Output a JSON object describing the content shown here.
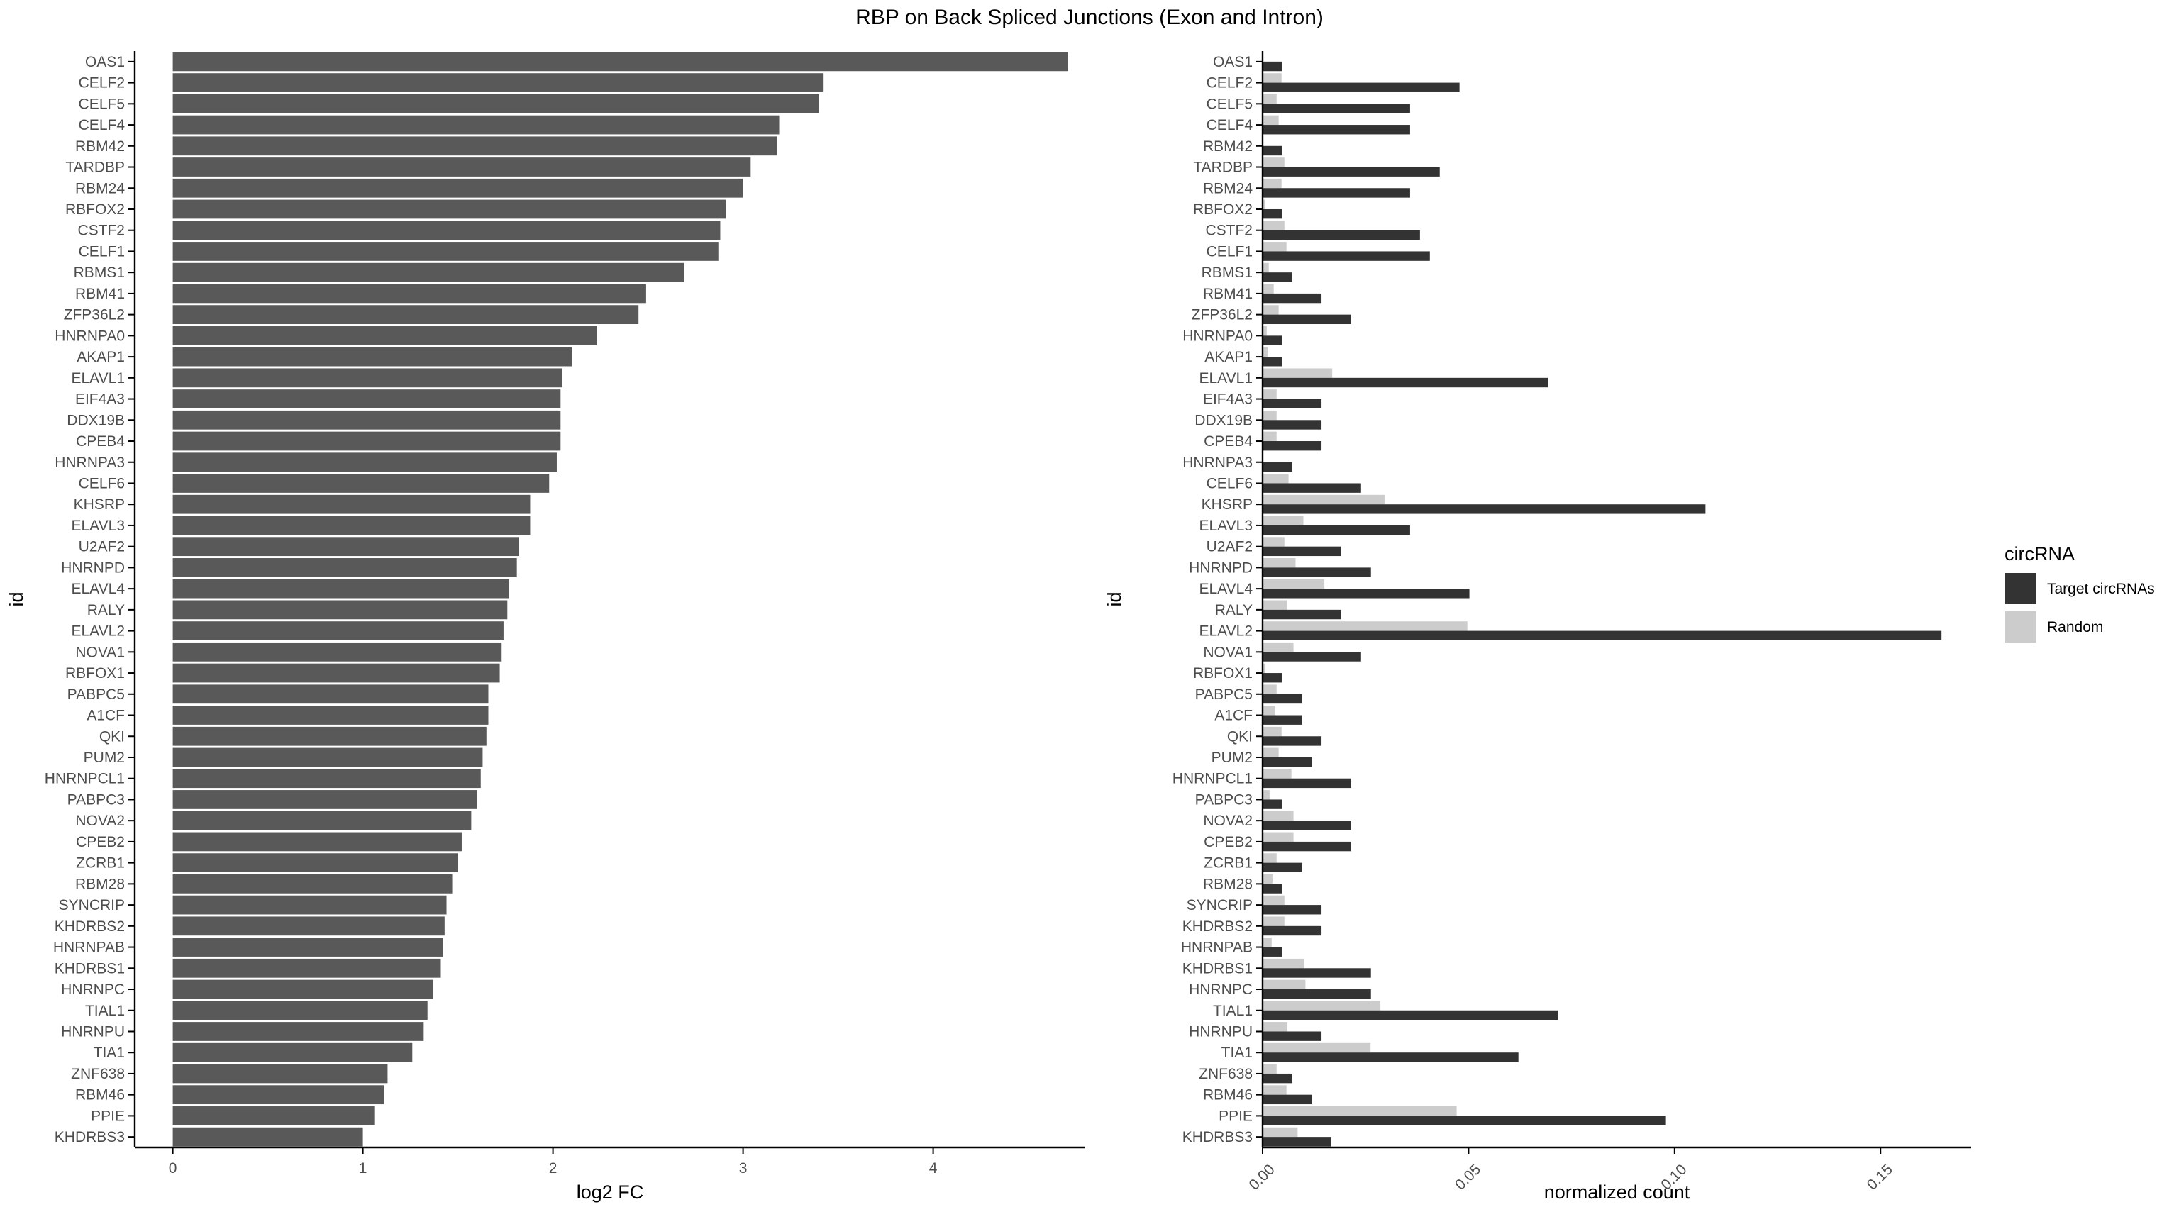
{
  "title": "RBP on Back Spliced Junctions (Exon and Intron)",
  "colors": {
    "fc_bar": "#595959",
    "target": "#333333",
    "random": "#cccccc",
    "axis": "#000000",
    "tick_text": "#4d4d4d"
  },
  "chart_data": [
    {
      "type": "bar",
      "orientation": "horizontal",
      "xlabel": "log2 FC",
      "ylabel": "id",
      "xlim": [
        -0.2,
        4.8
      ],
      "xticks": [
        0,
        1,
        2,
        3,
        4
      ],
      "grid": false,
      "categories": [
        "OAS1",
        "CELF2",
        "CELF5",
        "CELF4",
        "RBM42",
        "TARDBP",
        "RBM24",
        "RBFOX2",
        "CSTF2",
        "CELF1",
        "RBMS1",
        "RBM41",
        "ZFP36L2",
        "HNRNPA0",
        "AKAP1",
        "ELAVL1",
        "EIF4A3",
        "DDX19B",
        "CPEB4",
        "HNRNPA3",
        "CELF6",
        "KHSRP",
        "ELAVL3",
        "U2AF2",
        "HNRNPD",
        "ELAVL4",
        "RALY",
        "ELAVL2",
        "NOVA1",
        "RBFOX1",
        "PABPC5",
        "A1CF",
        "QKI",
        "PUM2",
        "HNRNPCL1",
        "PABPC3",
        "NOVA2",
        "CPEB2",
        "ZCRB1",
        "RBM28",
        "SYNCRIP",
        "KHDRBS2",
        "HNRNPAB",
        "KHDRBS1",
        "HNRNPC",
        "TIAL1",
        "HNRNPU",
        "TIA1",
        "ZNF638",
        "RBM46",
        "PPIE",
        "KHDRBS3"
      ],
      "values": [
        4.71,
        3.42,
        3.4,
        3.19,
        3.18,
        3.04,
        3.0,
        2.91,
        2.88,
        2.87,
        2.69,
        2.49,
        2.45,
        2.23,
        2.1,
        2.05,
        2.04,
        2.04,
        2.04,
        2.02,
        1.98,
        1.88,
        1.88,
        1.82,
        1.81,
        1.77,
        1.76,
        1.74,
        1.73,
        1.72,
        1.66,
        1.66,
        1.65,
        1.63,
        1.62,
        1.6,
        1.57,
        1.52,
        1.5,
        1.47,
        1.44,
        1.43,
        1.42,
        1.41,
        1.37,
        1.34,
        1.32,
        1.26,
        1.13,
        1.11,
        1.06,
        1.0
      ]
    },
    {
      "type": "bar",
      "orientation": "horizontal",
      "xlabel": "normalized count",
      "ylabel": "id",
      "xlim": [
        0,
        0.172
      ],
      "xticks": [
        "0.00",
        "0.05",
        "0.10",
        "0.15"
      ],
      "grid": false,
      "legend": {
        "title": "circRNA",
        "placement": "right",
        "entries": [
          "Target circRNAs",
          "Random"
        ]
      },
      "categories": [
        "OAS1",
        "CELF2",
        "CELF5",
        "CELF4",
        "RBM42",
        "TARDBP",
        "RBM24",
        "RBFOX2",
        "CSTF2",
        "CELF1",
        "RBMS1",
        "RBM41",
        "ZFP36L2",
        "HNRNPA0",
        "AKAP1",
        "ELAVL1",
        "EIF4A3",
        "DDX19B",
        "CPEB4",
        "HNRNPA3",
        "CELF6",
        "KHSRP",
        "ELAVL3",
        "U2AF2",
        "HNRNPD",
        "ELAVL4",
        "RALY",
        "ELAVL2",
        "NOVA1",
        "RBFOX1",
        "PABPC5",
        "A1CF",
        "QKI",
        "PUM2",
        "HNRNPCL1",
        "PABPC3",
        "NOVA2",
        "CPEB2",
        "ZCRB1",
        "RBM28",
        "SYNCRIP",
        "KHDRBS2",
        "HNRNPAB",
        "KHDRBS1",
        "HNRNPC",
        "TIAL1",
        "HNRNPU",
        "TIA1",
        "ZNF638",
        "RBM46",
        "PPIE",
        "KHDRBS3"
      ],
      "series": [
        {
          "name": "Target circRNAs",
          "values": [
            0.0048,
            0.0478,
            0.0358,
            0.0358,
            0.0048,
            0.043,
            0.0358,
            0.0048,
            0.0382,
            0.0406,
            0.0072,
            0.0143,
            0.0215,
            0.0048,
            0.0048,
            0.0693,
            0.0143,
            0.0143,
            0.0143,
            0.0072,
            0.0239,
            0.1075,
            0.0358,
            0.0191,
            0.0263,
            0.0502,
            0.0191,
            0.1648,
            0.0239,
            0.0048,
            0.0096,
            0.0096,
            0.0143,
            0.0119,
            0.0215,
            0.0048,
            0.0215,
            0.0215,
            0.0096,
            0.0048,
            0.0143,
            0.0143,
            0.0048,
            0.0263,
            0.0263,
            0.0717,
            0.0143,
            0.0621,
            0.0072,
            0.0119,
            0.0979,
            0.0167
          ]
        },
        {
          "name": "Random",
          "values": [
            0,
            0.0046,
            0.0034,
            0.0039,
            0,
            0.0053,
            0.0046,
            0.0007,
            0.0053,
            0.0058,
            0.0015,
            0.0027,
            0.0039,
            0.001,
            0.0012,
            0.0169,
            0.0034,
            0.0034,
            0.0034,
            0,
            0.0063,
            0.0296,
            0.0099,
            0.0053,
            0.008,
            0.015,
            0.006,
            0.0497,
            0.0075,
            0.0007,
            0.0034,
            0.0031,
            0.0046,
            0.0039,
            0.007,
            0.0017,
            0.0075,
            0.0075,
            0.0034,
            0.0024,
            0.0053,
            0.0053,
            0.0022,
            0.0101,
            0.0104,
            0.0286,
            0.006,
            0.0262,
            0.0034,
            0.0058,
            0.0471,
            0.0085
          ]
        }
      ]
    }
  ]
}
